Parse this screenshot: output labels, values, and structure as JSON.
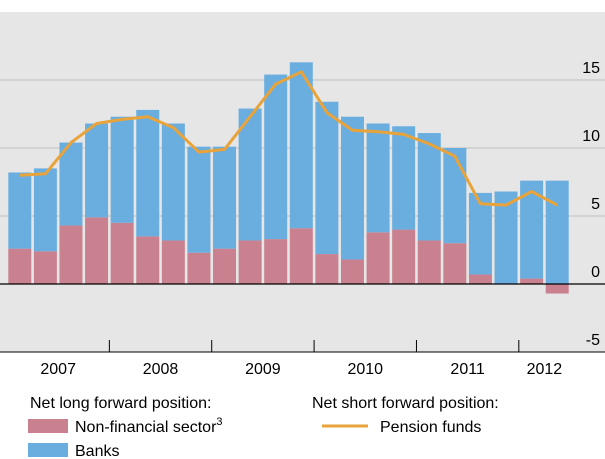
{
  "chart_data": {
    "type": "bar",
    "categories": [
      null,
      null,
      null,
      null,
      null,
      null,
      null,
      null,
      null,
      null,
      null,
      null,
      null,
      null,
      null,
      null,
      null,
      null,
      null,
      null,
      null,
      null
    ],
    "year_groups": [
      {
        "label": "2007",
        "quarters": 4
      },
      {
        "label": "2008",
        "quarters": 4
      },
      {
        "label": "2009",
        "quarters": 4
      },
      {
        "label": "2010",
        "quarters": 4
      },
      {
        "label": "2011",
        "quarters": 4
      },
      {
        "label": "2012",
        "quarters": 2
      }
    ],
    "legend_groups": [
      "Net long forward position:",
      "Net short forward position:"
    ],
    "series": [
      {
        "name": "Non-financial sector",
        "name_note": "3",
        "color": "#c9818f",
        "group": 0,
        "stacked": true,
        "values": [
          2.6,
          2.4,
          4.3,
          4.9,
          4.5,
          3.5,
          3.2,
          2.3,
          2.6,
          3.2,
          3.3,
          4.1,
          2.2,
          1.8,
          3.8,
          4.0,
          3.2,
          3.0,
          0.7,
          0,
          0.4,
          -0.7
        ]
      },
      {
        "name": "Banks",
        "color": "#6aaee0",
        "group": 0,
        "stacked": true,
        "values": [
          5.6,
          6.1,
          6.1,
          6.9,
          7.8,
          9.3,
          8.6,
          7.8,
          7.5,
          9.7,
          12.1,
          12.2,
          11.2,
          10.5,
          8.0,
          7.6,
          7.9,
          7.0,
          6.0,
          6.8,
          7.2,
          7.6
        ]
      },
      {
        "name": "Pension funds",
        "color": "#e8a33a",
        "group": 1,
        "kind": "line",
        "values": [
          8.0,
          8.1,
          10.4,
          11.8,
          12.1,
          12.3,
          11.5,
          9.7,
          9.9,
          12.3,
          14.7,
          15.6,
          12.6,
          11.3,
          11.2,
          11.0,
          10.3,
          9.4,
          5.9,
          5.8,
          6.8,
          5.8
        ]
      }
    ],
    "ylim": [
      -5,
      20
    ],
    "yticks": [
      -5,
      0,
      5,
      10,
      15
    ],
    "grid": true
  }
}
